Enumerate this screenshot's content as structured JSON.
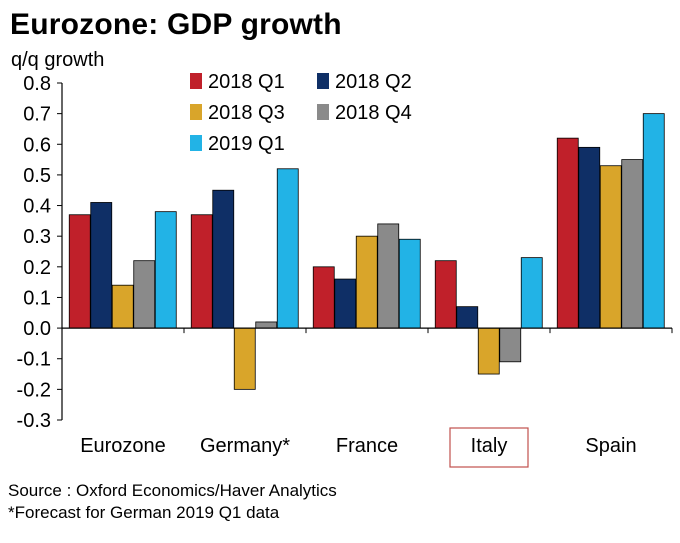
{
  "header": {
    "title": "Eurozone: GDP growth",
    "ylabel": "q/q growth"
  },
  "footer": {
    "source": "Source : Oxford Economics/Haver Analytics",
    "note": "*Forecast for German 2019 Q1 data"
  },
  "colors": {
    "highlight_box": "#c0504d"
  },
  "chart_data": {
    "type": "bar",
    "title": "Eurozone: GDP growth",
    "ylabel": "q/q growth",
    "xlabel": "",
    "ylim": [
      -0.3,
      0.8
    ],
    "yticks": [
      0.8,
      0.7,
      0.6,
      0.5,
      0.4,
      0.3,
      0.2,
      0.1,
      0.0,
      -0.1,
      -0.2,
      -0.3
    ],
    "ytick_labels": [
      "0.8",
      "0.7",
      "0.6",
      "0.5",
      "0.4",
      "0.3",
      "0.2",
      "0.1",
      "0.0",
      "-0.1",
      "-0.2",
      "-0.3"
    ],
    "categories": [
      "Eurozone",
      "Germany*",
      "France",
      "Italy",
      "Spain"
    ],
    "highlighted_category": "Italy",
    "grid": false,
    "legend_position": "top-right",
    "series": [
      {
        "name": "2018 Q1",
        "color": "#c0202a",
        "values": [
          0.37,
          0.37,
          0.2,
          0.22,
          0.62
        ]
      },
      {
        "name": "2018 Q2",
        "color": "#0f2f66",
        "values": [
          0.41,
          0.45,
          0.16,
          0.07,
          0.59
        ]
      },
      {
        "name": "2018 Q3",
        "color": "#d9a52a",
        "values": [
          0.14,
          -0.2,
          0.3,
          -0.15,
          0.53
        ]
      },
      {
        "name": "2018 Q4",
        "color": "#8a8a8a",
        "values": [
          0.22,
          0.02,
          0.34,
          -0.11,
          0.55
        ]
      },
      {
        "name": "2019 Q1",
        "color": "#22b3e6",
        "values": [
          0.38,
          0.52,
          0.29,
          0.23,
          0.7
        ]
      }
    ]
  }
}
